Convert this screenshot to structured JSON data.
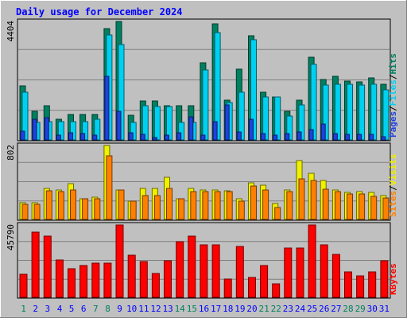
{
  "chart_data": {
    "type": "bar",
    "title": "Daily usage for December 2024",
    "categories": [
      "1",
      "2",
      "3",
      "4",
      "5",
      "6",
      "7",
      "8",
      "9",
      "10",
      "11",
      "12",
      "13",
      "14",
      "15",
      "16",
      "17",
      "18",
      "19",
      "20",
      "21",
      "22",
      "23",
      "24",
      "25",
      "26",
      "27",
      "28",
      "29",
      "30",
      "31"
    ],
    "weekend_days": [
      "1",
      "7",
      "8",
      "14",
      "15",
      "21",
      "22",
      "28",
      "29"
    ],
    "panels": [
      {
        "id": "hits",
        "max_label": "4404",
        "ylim": [
          0,
          4404
        ],
        "side_labels": [
          "Pages",
          "Files",
          "Hits"
        ],
        "series": [
          {
            "name": "Hits",
            "color": "#008060",
            "values": [
              2000,
              1075,
              1270,
              780,
              955,
              955,
              955,
              4130,
              4404,
              925,
              1450,
              1450,
              1270,
              1270,
              1270,
              2860,
              4320,
              1480,
              2630,
              3880,
              1780,
              1600,
              1075,
              1480,
              3080,
              2250,
              2350,
              2180,
              2170,
              2320,
              2080
            ]
          },
          {
            "name": "Files",
            "color": "#00d0f0",
            "values": [
              1760,
              640,
              690,
              690,
              690,
              690,
              780,
              3900,
              3540,
              640,
              1270,
              1240,
              1240,
              640,
              640,
              2600,
              3990,
              1390,
              1780,
              3730,
              1600,
              1600,
              890,
              1300,
              2810,
              2050,
              2080,
              2080,
              2050,
              2070,
              1850
            ]
          },
          {
            "name": "Pages",
            "color": "#2040e0",
            "values": [
              330,
              760,
              840,
              180,
              260,
              230,
              180,
              2360,
              1050,
              280,
              200,
              100,
              190,
              280,
              850,
              170,
              680,
              1310,
              300,
              780,
              250,
              190,
              230,
              310,
              390,
              580,
              250,
              210,
              210,
              210,
              130
            ]
          }
        ]
      },
      {
        "id": "visits",
        "max_label": "802",
        "ylim": [
          0,
          802
        ],
        "side_labels": [
          "Sites",
          "Visits"
        ],
        "series": [
          {
            "name": "Visits",
            "color": "#f0f000",
            "values": [
              180,
              180,
              340,
              320,
              390,
              220,
              240,
              802,
              320,
              200,
              340,
              340,
              460,
              220,
              340,
              320,
              320,
              310,
              220,
              400,
              370,
              170,
              320,
              640,
              500,
              420,
              320,
              290,
              300,
              290,
              260
            ]
          },
          {
            "name": "Sites",
            "color": "#ff8000",
            "values": [
              160,
              160,
              310,
              300,
              320,
              220,
              220,
              690,
              320,
              200,
              260,
              260,
              340,
              220,
              300,
              300,
              300,
              300,
              200,
              360,
              320,
              130,
              300,
              440,
              420,
              330,
              300,
              280,
              280,
              250,
              230
            ]
          }
        ]
      },
      {
        "id": "kbytes",
        "max_label": "45790",
        "ylim": [
          0,
          45790
        ],
        "side_labels": [
          "KBytes"
        ],
        "series": [
          {
            "name": "KBytes",
            "color": "#ff0000",
            "values": [
              14500,
              41500,
              38800,
              23800,
              17900,
              20200,
              21700,
              21700,
              45790,
              26600,
              22500,
              15000,
              22900,
              35200,
              38600,
              33300,
              33300,
              11500,
              32100,
              12800,
              20300,
              8600,
              31000,
              31000,
              45790,
              33400,
              27100,
              16300,
              13800,
              16300,
              22900
            ]
          }
        ]
      }
    ]
  },
  "colors": {
    "background": "#c0c0c0",
    "plot_bg": "#c0c0c0",
    "title": "#0000ff",
    "weekday_label": "#0000ff",
    "weekend_label": "#00805c"
  }
}
